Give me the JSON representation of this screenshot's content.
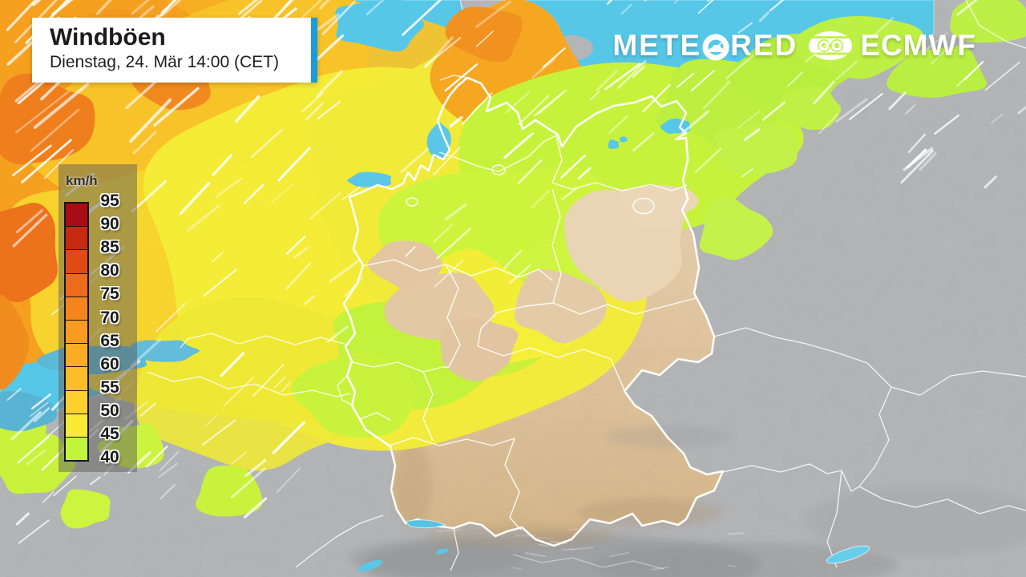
{
  "header": {
    "title": "Windböen",
    "subtitle": "Dienstag, 24. Mär 14:00 (CET)",
    "accent_color": "#1d9cd9"
  },
  "branding": {
    "brand": "METEORED",
    "brand_prefix": "METE",
    "brand_suffix": "RED",
    "model": "ECMWF",
    "meteored_icon": "cloud-in-o-icon",
    "ecmwf_icon": "ecmwf-globe-icon"
  },
  "legend": {
    "unit": "km/h",
    "ticks": [
      "95",
      "90",
      "85",
      "80",
      "75",
      "70",
      "65",
      "60",
      "55",
      "50",
      "45",
      "40"
    ],
    "band_colors_top_to_bottom": [
      "#a80d15",
      "#c62a11",
      "#e04a15",
      "#ee6b1b",
      "#f5841e",
      "#f99b20",
      "#fbab24",
      "#fcbd29",
      "#fdd02e",
      "#f8ea35",
      "#c3f43c"
    ]
  },
  "map": {
    "sea_color": "#57c7e8",
    "neighbor_land_color": "#b4b5b7",
    "calm_land_color": "#e4c9a3",
    "border_color": "#ffffff",
    "wind_streak_color": "#ffffff"
  }
}
